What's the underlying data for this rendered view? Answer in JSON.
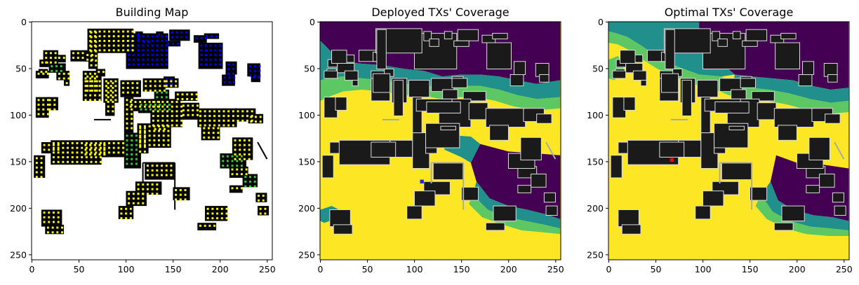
{
  "chart_data": [
    {
      "type": "heatmap",
      "title": "Building Map",
      "xlim": [
        0,
        255
      ],
      "ylim": [
        255,
        0
      ],
      "xticks": [
        0,
        50,
        100,
        150,
        200,
        250
      ],
      "yticks": [
        0,
        50,
        100,
        150,
        200,
        250
      ],
      "background": "white",
      "building_color": "#000000",
      "marker_colors": [
        "#ffff00",
        "#0000ff",
        "#32cd32",
        "#1e90ff"
      ]
    },
    {
      "type": "heatmap",
      "title": "Deployed TXs' Coverage",
      "xlim": [
        0,
        255
      ],
      "ylim": [
        255,
        0
      ],
      "xticks": [
        0,
        50,
        100,
        150,
        200,
        250
      ],
      "yticks": [
        0,
        50,
        100,
        150,
        200,
        250
      ],
      "colormap": [
        "#440154",
        "#21908d",
        "#5dc863",
        "#fde725"
      ],
      "tx_markers": [
        {
          "x": 108,
          "y": 170,
          "color": "#2222ff"
        }
      ]
    },
    {
      "type": "heatmap",
      "title": "Optimal TXs' Coverage",
      "xlim": [
        0,
        255
      ],
      "ylim": [
        255,
        0
      ],
      "xticks": [
        0,
        50,
        100,
        150,
        200,
        250
      ],
      "yticks": [
        0,
        50,
        100,
        150,
        200,
        250
      ],
      "colormap": [
        "#440154",
        "#21908d",
        "#5dc863",
        "#fde725"
      ],
      "tx_markers": [
        {
          "x": 67,
          "y": 147,
          "color": "#ff0000"
        }
      ]
    }
  ]
}
